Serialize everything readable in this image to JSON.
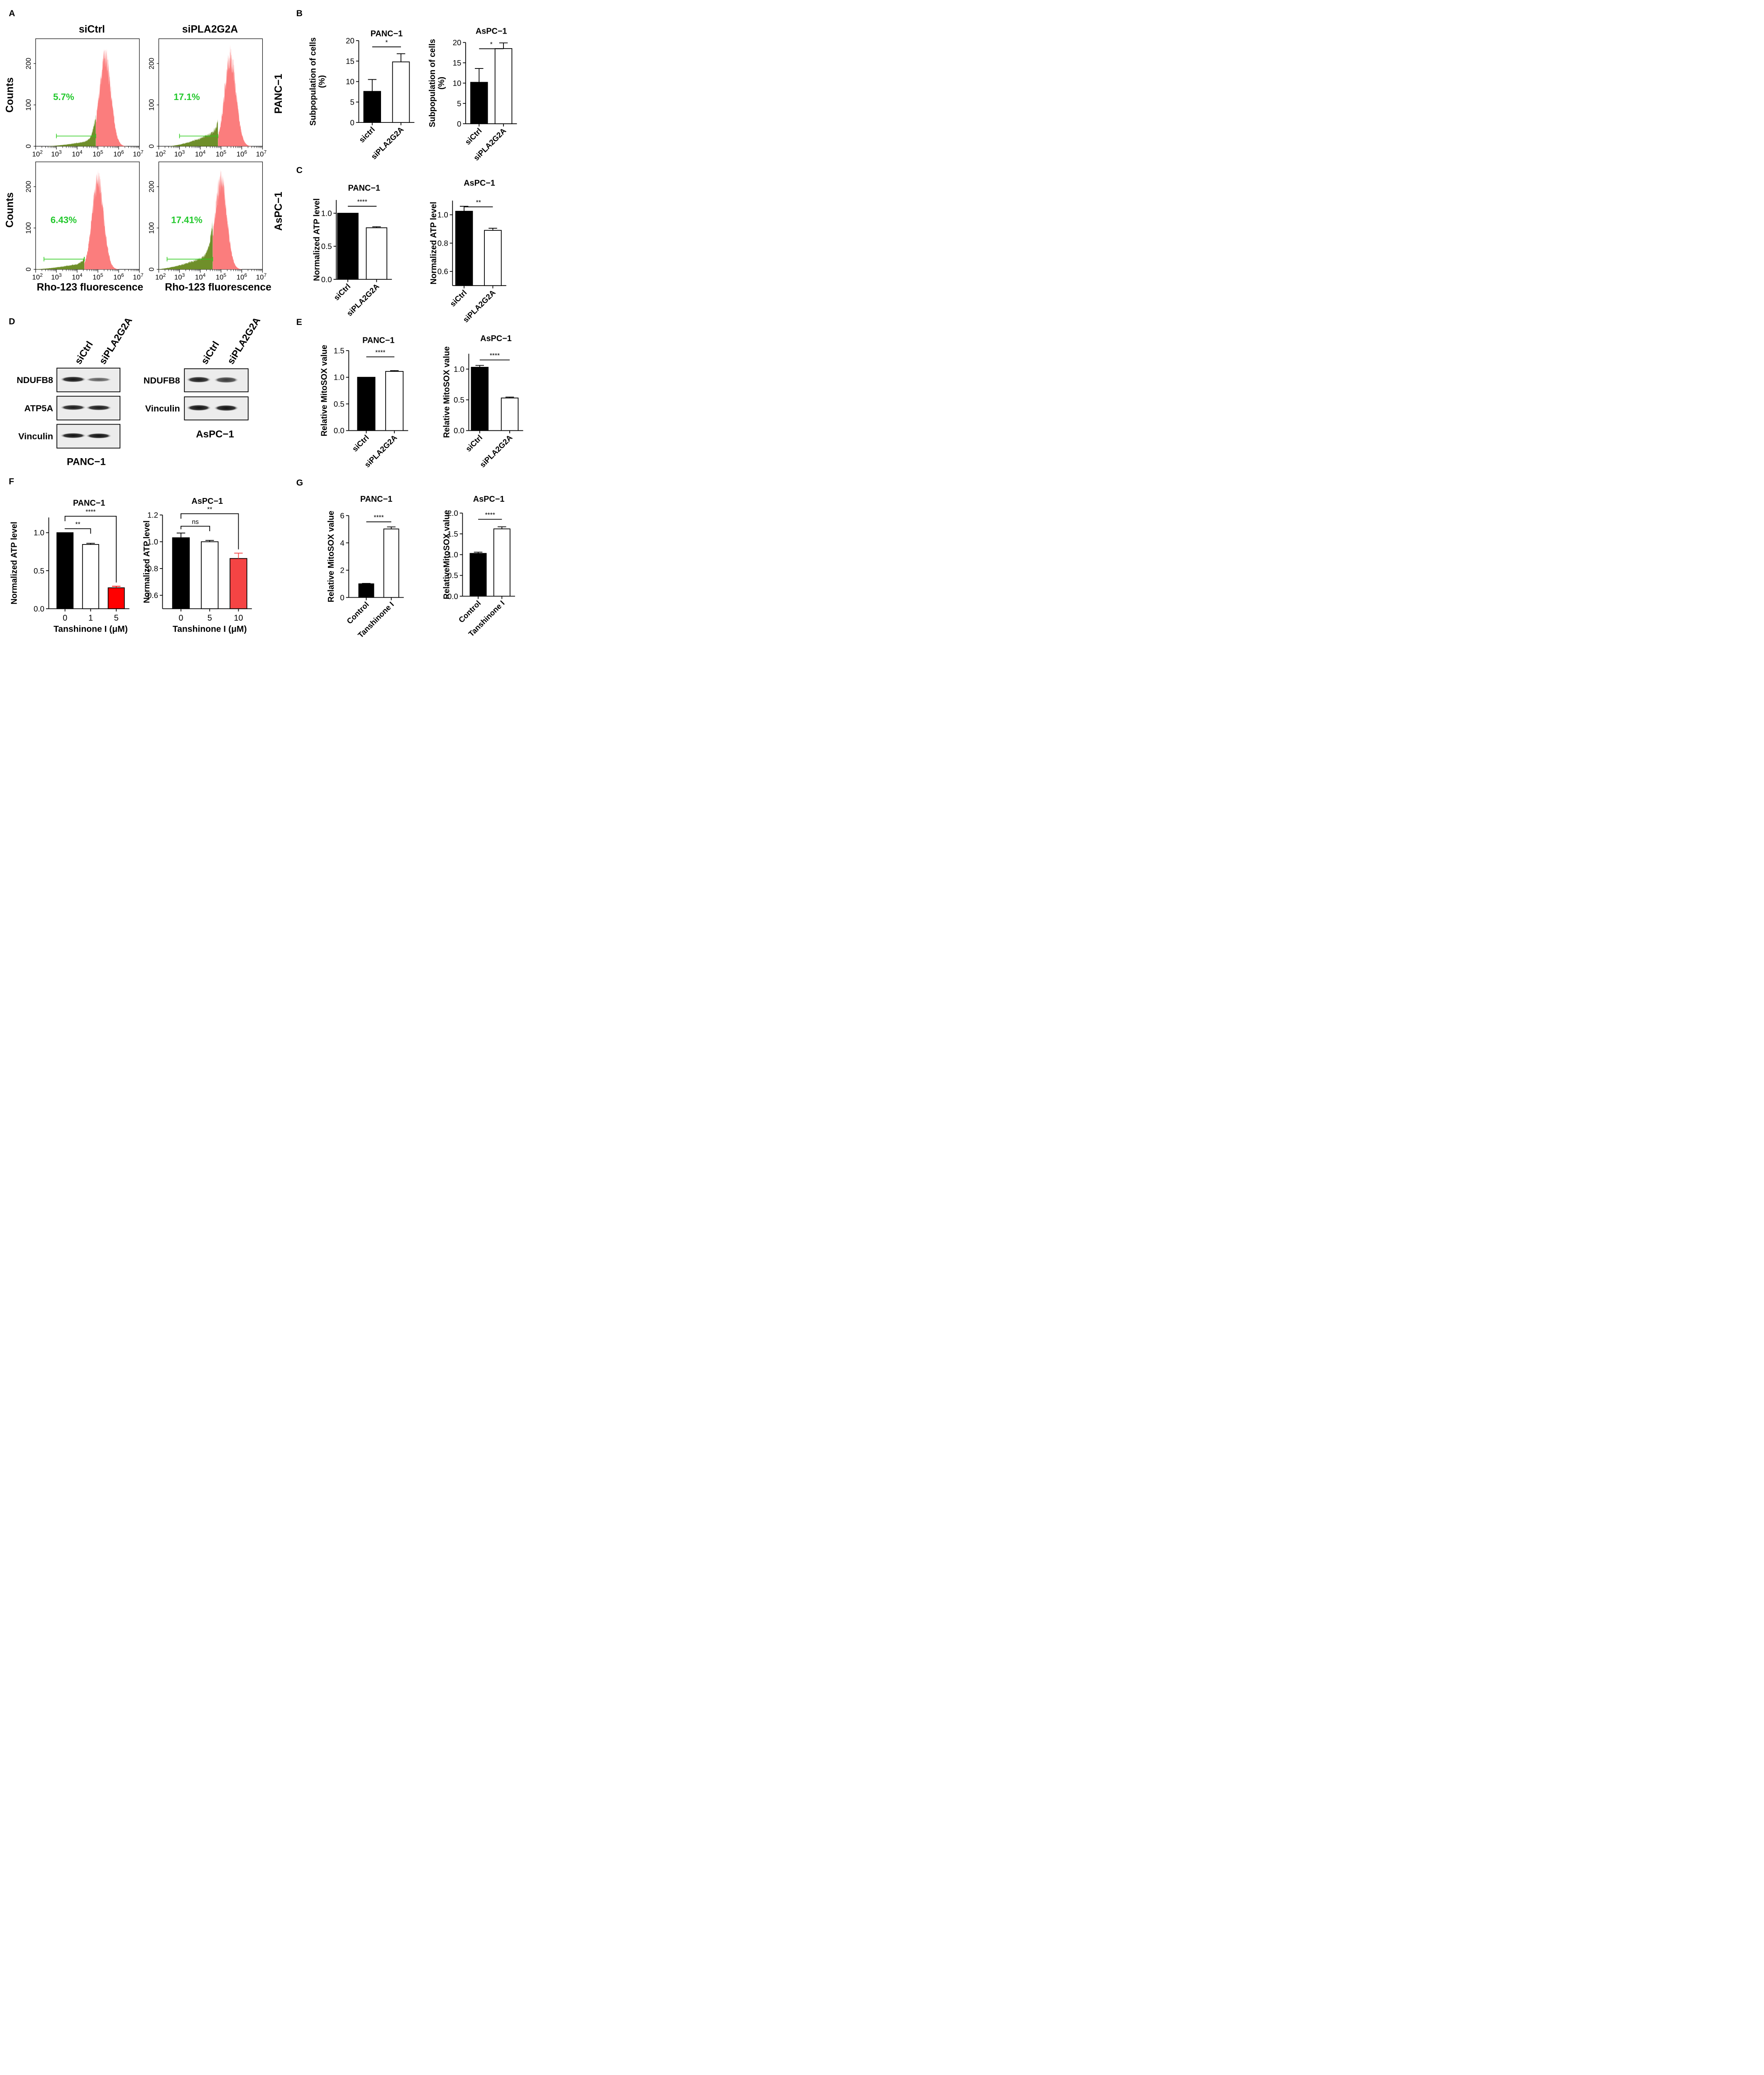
{
  "panel_letters": [
    "A",
    "B",
    "C",
    "D",
    "E",
    "F",
    "G"
  ],
  "colors": {
    "black": "#000000",
    "white": "#ffffff",
    "red": "#ff0000",
    "red_light": "#f44444",
    "hist_pink": "#fb7d7d",
    "hist_green": "#6f8f2a",
    "gate_green": "#2ecc1e",
    "pct_green": "#21c82b"
  },
  "blot_d": {
    "panc1": {
      "lanes": [
        "siCtrl",
        "siPLA2G2A"
      ],
      "rows": [
        "NDUFB8",
        "ATP5A",
        "Vinculin"
      ],
      "caption": "PANC−1"
    },
    "aspc1": {
      "lanes": [
        "siCtrl",
        "siPLA2G2A"
      ],
      "rows": [
        "NDUFB8",
        "Vinculin"
      ],
      "caption": "AsPC−1"
    }
  },
  "chart_data": [
    {
      "id": "A",
      "type": "histogram",
      "col_titles": [
        "siCtrl",
        "siPLA2G2A"
      ],
      "row_titles": [
        "PANC−1",
        "AsPC−1"
      ],
      "ylabel": "Counts",
      "xlabel": "Rho-123 fluorescence",
      "x_ticks": [
        "10^2",
        "10^3",
        "10^4",
        "10^5",
        "10^6",
        "10^7"
      ],
      "panels": [
        {
          "row": "PANC−1",
          "col": "siCtrl",
          "percent": "5.7%",
          "peak_log": 5.35,
          "peak_count": 215,
          "y_ticks": [
            "0",
            "100",
            "200"
          ],
          "ymax": 260,
          "gate_from_log": 3.0,
          "gate_to_log": 4.9
        },
        {
          "row": "PANC−1",
          "col": "siPLA2G2A",
          "percent": "17.1%",
          "peak_log": 5.45,
          "peak_count": 215,
          "y_ticks": [
            "0",
            "100",
            "200"
          ],
          "ymax": 260,
          "gate_from_log": 3.0,
          "gate_to_log": 4.85
        },
        {
          "row": "AsPC−1",
          "col": "siCtrl",
          "percent": "6.43%",
          "peak_log": 5.0,
          "peak_count": 215,
          "y_ticks": [
            "0",
            "100",
            "200"
          ],
          "ymax": 260,
          "gate_from_log": 2.4,
          "gate_to_log": 4.35
        },
        {
          "row": "AsPC−1",
          "col": "siPLA2G2A",
          "percent": "17.41%",
          "peak_log": 5.0,
          "peak_count": 215,
          "y_ticks": [
            "0",
            "100",
            "200"
          ],
          "ymax": 260,
          "gate_from_log": 2.4,
          "gate_to_log": 4.6
        }
      ]
    },
    {
      "id": "B1",
      "type": "bar",
      "title": "PANC−1",
      "ylabel": [
        "Subpopulation of cells",
        "(%)"
      ],
      "categories": [
        "sictrl",
        "siPLA2G2A"
      ],
      "values": [
        7.6,
        14.8
      ],
      "errors": [
        2.9,
        2.0
      ],
      "fills": [
        "#000000",
        "#ffffff"
      ],
      "ylim": [
        0,
        20
      ],
      "yticks": [
        "0",
        "5",
        "10",
        "15",
        "20"
      ],
      "sig": [
        {
          "a": 0,
          "b": 1,
          "label": "*"
        }
      ]
    },
    {
      "id": "B2",
      "type": "bar",
      "title": "AsPC−1",
      "ylabel": [
        "Subpopulation of cells",
        "(%)"
      ],
      "categories": [
        "siCtrl",
        "siPLA2G2A"
      ],
      "values": [
        10.2,
        18.5
      ],
      "errors": [
        3.4,
        1.4
      ],
      "fills": [
        "#000000",
        "#ffffff"
      ],
      "ylim": [
        0,
        20
      ],
      "yticks": [
        "0",
        "5",
        "10",
        "15",
        "20"
      ],
      "sig": [
        {
          "a": 0,
          "b": 1,
          "label": "*"
        }
      ]
    },
    {
      "id": "C1",
      "type": "bar",
      "title": "PANC−1",
      "ylabel": [
        "Normalized ATP level"
      ],
      "categories": [
        "siCtrl",
        "siPLA2G2A"
      ],
      "values": [
        1.0,
        0.78
      ],
      "errors": [
        0.0,
        0.015
      ],
      "fills": [
        "#000000",
        "#ffffff"
      ],
      "ylim": [
        0,
        1.2
      ],
      "yticks": [
        "0.0",
        "0.5",
        "1.0"
      ],
      "sig": [
        {
          "a": 0,
          "b": 1,
          "label": "****"
        }
      ]
    },
    {
      "id": "C2",
      "type": "bar",
      "title": "AsPC−1",
      "ylabel": [
        "Normalized ATP level"
      ],
      "categories": [
        "siCtrl",
        "siPLA2G2A"
      ],
      "values": [
        1.025,
        0.89
      ],
      "errors": [
        0.035,
        0.015
      ],
      "fills": [
        "#000000",
        "#ffffff"
      ],
      "ylim": [
        0.5,
        1.1
      ],
      "yticks": [
        "0.6",
        "0.8",
        "1.0"
      ],
      "sig": [
        {
          "a": 0,
          "b": 1,
          "label": "**"
        }
      ]
    },
    {
      "id": "E1",
      "type": "bar",
      "title": "PANC−1",
      "ylabel": [
        "Relative MitoSOX value"
      ],
      "categories": [
        "siCtrl",
        "siPLA2G2A"
      ],
      "values": [
        1.0,
        1.11
      ],
      "errors": [
        0.0,
        0.015
      ],
      "fills": [
        "#000000",
        "#ffffff"
      ],
      "ylim": [
        0,
        1.5
      ],
      "yticks": [
        "0.0",
        "0.5",
        "1.0",
        "1.5"
      ],
      "sig": [
        {
          "a": 0,
          "b": 1,
          "label": "****"
        }
      ]
    },
    {
      "id": "E2",
      "type": "bar",
      "title": "AsPC−1",
      "ylabel": [
        "Relative MitoSOX value"
      ],
      "categories": [
        "siCtrl",
        "siPLA2G2A"
      ],
      "values": [
        1.03,
        0.53
      ],
      "errors": [
        0.03,
        0.015
      ],
      "fills": [
        "#000000",
        "#ffffff"
      ],
      "ylim": [
        0,
        1.25
      ],
      "yticks": [
        "0.0",
        "0.5",
        "1.0"
      ],
      "sig": [
        {
          "a": 0,
          "b": 1,
          "label": "****"
        }
      ]
    },
    {
      "id": "F1",
      "type": "bar",
      "title": "PANC−1",
      "ylabel": [
        "Normalized ATP level"
      ],
      "xlabel": "Tanshinone I (μM)",
      "categories": [
        "0",
        "1",
        "5"
      ],
      "values": [
        1.0,
        0.845,
        0.275
      ],
      "errors": [
        0.0,
        0.015,
        0.02
      ],
      "fills": [
        "#000000",
        "#ffffff",
        "#ff0000"
      ],
      "ylim": [
        0,
        1.2
      ],
      "yticks": [
        "0.0",
        "0.5",
        "1.0"
      ],
      "sig": [
        {
          "a": 0,
          "b": 1,
          "label": "**"
        },
        {
          "a": 0,
          "b": 2,
          "label": "****"
        }
      ]
    },
    {
      "id": "F2",
      "type": "bar",
      "title": "AsPC−1",
      "ylabel": [
        "Normalized ATP level"
      ],
      "xlabel": "Tanshinone I (μM)",
      "categories": [
        "0",
        "5",
        "10"
      ],
      "values": [
        1.03,
        1.0,
        0.875
      ],
      "errors": [
        0.035,
        0.01,
        0.04
      ],
      "fills": [
        "#000000",
        "#ffffff",
        "#f44444"
      ],
      "ylim": [
        0.5,
        1.2
      ],
      "yticks": [
        "0.6",
        "0.8",
        "1.0",
        "1.2"
      ],
      "sig": [
        {
          "a": 0,
          "b": 1,
          "label": "ns"
        },
        {
          "a": 0,
          "b": 2,
          "label": "**"
        }
      ]
    },
    {
      "id": "G1",
      "type": "bar",
      "title": "PANC−1",
      "ylabel": [
        "Relative MitoSOX value"
      ],
      "categories": [
        "Control",
        "Tanshinone I"
      ],
      "values": [
        1.0,
        5.02
      ],
      "errors": [
        0.03,
        0.15
      ],
      "fills": [
        "#000000",
        "#ffffff"
      ],
      "ylim": [
        0,
        6
      ],
      "yticks": [
        "0",
        "2",
        "4",
        "6"
      ],
      "sig": [
        {
          "a": 0,
          "b": 1,
          "label": "****"
        }
      ]
    },
    {
      "id": "G2",
      "type": "bar",
      "title": "AsPC−1",
      "ylabel": [
        "RelativeMitoSOX value"
      ],
      "categories": [
        "Control",
        "Tanshinone I"
      ],
      "values": [
        1.03,
        1.62
      ],
      "errors": [
        0.03,
        0.05
      ],
      "fills": [
        "#000000",
        "#ffffff"
      ],
      "ylim": [
        0,
        2
      ],
      "yticks": [
        "0.0",
        "0.5",
        "1.0",
        "1.5",
        "2.0"
      ],
      "sig": [
        {
          "a": 0,
          "b": 1,
          "label": "****"
        }
      ]
    }
  ]
}
